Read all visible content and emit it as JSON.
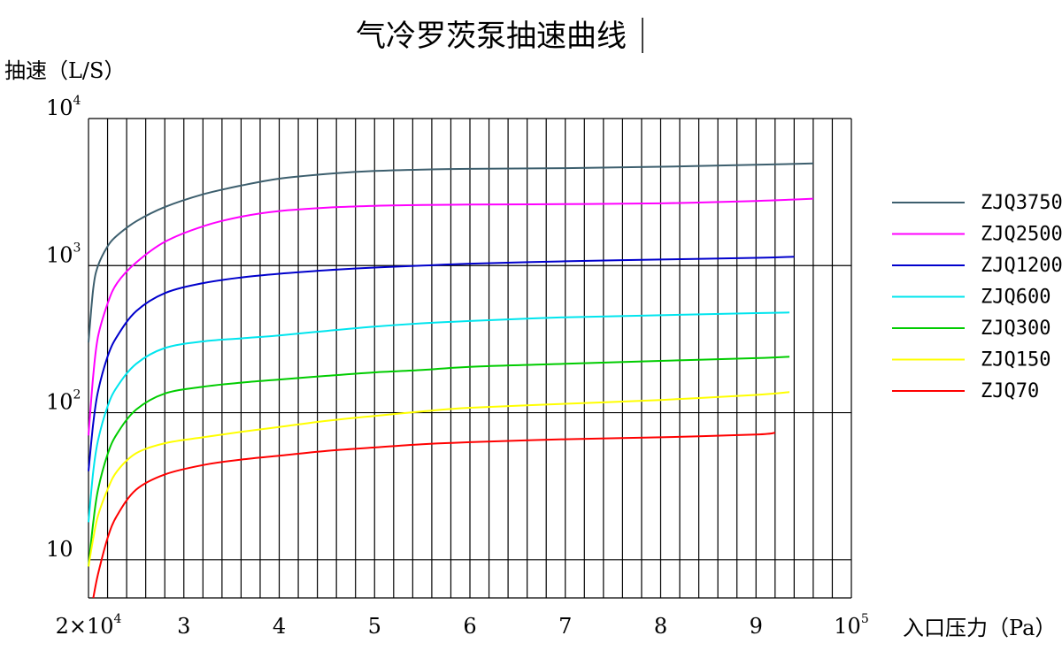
{
  "chart_data": {
    "type": "line",
    "title": "气冷罗茨泵抽速曲线",
    "ylabel": "抽速（L/S）",
    "xlabel": "入口压力（Pa）",
    "x_scale": "linear",
    "y_scale": "log",
    "xlim": [
      20000,
      100000
    ],
    "ylim": [
      5.5,
      10000
    ],
    "grid": true,
    "legend_position": "right",
    "x_ticks": [
      {
        "value": 20000,
        "base": "2×10",
        "exp": "4"
      },
      {
        "value": 30000,
        "base": "3",
        "exp": ""
      },
      {
        "value": 40000,
        "base": "4",
        "exp": ""
      },
      {
        "value": 50000,
        "base": "5",
        "exp": ""
      },
      {
        "value": 60000,
        "base": "6",
        "exp": ""
      },
      {
        "value": 70000,
        "base": "7",
        "exp": ""
      },
      {
        "value": 80000,
        "base": "8",
        "exp": ""
      },
      {
        "value": 90000,
        "base": "9",
        "exp": ""
      },
      {
        "value": 100000,
        "base": "10",
        "exp": "5"
      }
    ],
    "y_ticks": [
      {
        "value": 10,
        "base": "10",
        "exp": ""
      },
      {
        "value": 100,
        "base": "10",
        "exp": "2"
      },
      {
        "value": 1000,
        "base": "10",
        "exp": "3"
      },
      {
        "value": 10000,
        "base": "10",
        "exp": "4"
      }
    ],
    "series": [
      {
        "name": "ZJQ3750",
        "color": "#3d5f6e",
        "x": [
          20000,
          20500,
          21000,
          22000,
          23000,
          25000,
          28000,
          32000,
          36000,
          40000,
          45000,
          50000,
          55000,
          60000,
          70000,
          80000,
          90000,
          96000
        ],
        "y": [
          300,
          700,
          1000,
          1350,
          1600,
          2000,
          2500,
          3050,
          3500,
          3900,
          4200,
          4400,
          4500,
          4550,
          4600,
          4700,
          4850,
          4950
        ]
      },
      {
        "name": "ZJQ2500",
        "color": "#ff00ff",
        "x": [
          20000,
          20500,
          21000,
          22000,
          23000,
          25000,
          28000,
          32000,
          36000,
          40000,
          45000,
          50000,
          55000,
          60000,
          70000,
          80000,
          90000,
          96000
        ],
        "y": [
          70,
          180,
          330,
          550,
          760,
          1050,
          1450,
          1850,
          2150,
          2350,
          2480,
          2550,
          2580,
          2600,
          2620,
          2650,
          2750,
          2850
        ]
      },
      {
        "name": "ZJQ1200",
        "color": "#0000cc",
        "x": [
          20000,
          20500,
          21000,
          22000,
          23000,
          25000,
          28000,
          32000,
          36000,
          40000,
          45000,
          50000,
          55000,
          60000,
          70000,
          80000,
          90000,
          94000
        ],
        "y": [
          40,
          85,
          140,
          240,
          330,
          490,
          650,
          760,
          830,
          880,
          930,
          970,
          1000,
          1030,
          1070,
          1100,
          1130,
          1150
        ]
      },
      {
        "name": "ZJQ600",
        "color": "#00e5ee",
        "x": [
          20000,
          20500,
          21000,
          22000,
          23000,
          25000,
          28000,
          32000,
          36000,
          40000,
          45000,
          50000,
          55000,
          60000,
          70000,
          80000,
          90000,
          93500
        ],
        "y": [
          18,
          40,
          65,
          110,
          150,
          215,
          275,
          305,
          320,
          335,
          360,
          385,
          405,
          420,
          445,
          460,
          475,
          480
        ]
      },
      {
        "name": "ZJQ300",
        "color": "#00cc00",
        "x": [
          20000,
          20500,
          21000,
          22000,
          23000,
          25000,
          28000,
          32000,
          36000,
          40000,
          45000,
          50000,
          55000,
          60000,
          70000,
          80000,
          90000,
          93500
        ],
        "y": [
          9,
          18,
          30,
          52,
          72,
          105,
          135,
          150,
          160,
          168,
          178,
          188,
          195,
          205,
          215,
          225,
          235,
          240
        ]
      },
      {
        "name": "ZJQ150",
        "color": "#ffff00",
        "x": [
          20000,
          20500,
          21000,
          22000,
          23000,
          25000,
          28000,
          32000,
          36000,
          40000,
          45000,
          50000,
          55000,
          60000,
          70000,
          80000,
          90000,
          93500
        ],
        "y": [
          9,
          14,
          20,
          30,
          40,
          53,
          62,
          68,
          74,
          80,
          88,
          95,
          102,
          108,
          115,
          122,
          132,
          138
        ]
      },
      {
        "name": "ZJQ70",
        "color": "#ff0000",
        "x": [
          20500,
          21000,
          22000,
          23000,
          25000,
          28000,
          32000,
          36000,
          40000,
          45000,
          50000,
          55000,
          60000,
          70000,
          80000,
          90000,
          92000
        ],
        "y": [
          5.5,
          8,
          14,
          20,
          30,
          38,
          44,
          48,
          51,
          55,
          58,
          61,
          63,
          66,
          68,
          71,
          73
        ]
      }
    ]
  }
}
